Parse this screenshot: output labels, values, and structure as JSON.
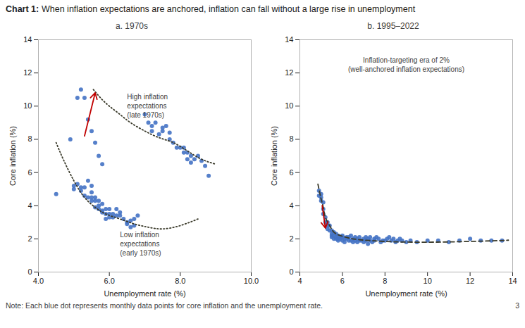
{
  "title": "Chart 1:",
  "subtitle": "When inflation expectations are anchored, inflation can fall without a large rise in unemployment",
  "caption": "Note: Each blue dot represents monthly data points for core inflation and the unemployment rate.",
  "page_number": "3",
  "chart_data": [
    {
      "type": "scatter",
      "title": "a. 1970s",
      "xlabel": "Unemployment rate (%)",
      "ylabel": "Core inflation (%)",
      "xlim": [
        4,
        10
      ],
      "ylim": [
        0,
        14
      ],
      "xticks": [
        4,
        6,
        8,
        10
      ],
      "yticks": [
        0,
        2,
        4,
        6,
        8,
        10,
        12,
        14
      ],
      "grid": false,
      "series": [
        {
          "type": "scatter",
          "marker": "circle",
          "color": "#4472C4",
          "x": [
            4.5,
            4.9,
            5.0,
            5.0,
            5.1,
            5.2,
            5.2,
            5.3,
            5.3,
            5.4,
            5.4,
            5.5,
            5.5,
            5.5,
            5.5,
            5.6,
            5.6,
            5.6,
            5.7,
            5.7,
            5.7,
            5.8,
            5.8,
            5.8,
            5.9,
            5.9,
            5.9,
            6.0,
            6.0,
            6.0,
            6.1,
            6.1,
            6.2,
            6.2,
            6.3,
            6.3,
            6.4,
            6.5,
            6.5,
            6.6,
            6.6,
            6.7,
            6.7,
            6.8,
            7.0,
            7.1,
            7.2,
            7.2,
            7.3,
            7.4,
            7.5,
            7.5,
            7.6,
            7.7,
            7.7,
            7.8,
            7.9,
            8.0,
            8.1,
            8.1,
            8.2,
            8.2,
            8.3,
            8.3,
            8.4,
            8.5,
            8.6,
            8.7,
            8.8,
            5.1,
            5.2,
            5.3,
            5.4,
            5.5,
            5.6,
            5.7,
            5.8
          ],
          "values": [
            4.7,
            8.0,
            5.2,
            5.0,
            5.3,
            5.1,
            4.9,
            5.1,
            4.6,
            4.5,
            5.5,
            4.8,
            4.5,
            4.3,
            5.2,
            4.3,
            4.5,
            3.9,
            3.8,
            4.3,
            4.0,
            3.6,
            3.7,
            4.1,
            3.5,
            3.2,
            3.8,
            3.3,
            3.8,
            3.5,
            3.5,
            3.3,
            3.4,
            3.8,
            3.4,
            3.6,
            3.2,
            3.0,
            2.9,
            2.7,
            3.1,
            2.8,
            3.2,
            3.4,
            9.5,
            9.0,
            8.5,
            8.8,
            9.0,
            8.3,
            8.7,
            8.5,
            8.8,
            8.0,
            8.4,
            7.8,
            7.5,
            7.5,
            7.5,
            7.2,
            6.8,
            7.2,
            6.6,
            7.0,
            6.8,
            7.0,
            6.7,
            6.4,
            5.8,
            10.5,
            11.0,
            10.5,
            9.2,
            8.5,
            7.8,
            7.0,
            6.5
          ]
        },
        {
          "type": "line",
          "line_style": "dotted",
          "color": "#3a3a2a",
          "x": [
            5.55,
            5.75,
            6.0,
            6.3,
            6.6,
            7.0,
            7.4,
            7.8,
            8.2,
            8.6,
            9.0
          ],
          "values": [
            11.0,
            10.5,
            10.0,
            9.5,
            9.0,
            8.5,
            8.1,
            7.8,
            7.3,
            6.8,
            6.5
          ]
        },
        {
          "type": "line",
          "line_style": "dotted",
          "color": "#3a3a2a",
          "x": [
            4.5,
            4.7,
            5.0,
            5.3,
            5.6,
            5.9,
            6.3,
            6.7,
            7.1,
            7.5,
            8.0,
            8.5
          ],
          "values": [
            7.8,
            6.8,
            5.5,
            4.5,
            3.9,
            3.5,
            3.2,
            2.9,
            2.7,
            2.6,
            2.8,
            3.2
          ]
        }
      ],
      "arrows": [
        {
          "x1": 5.3,
          "y1": 8.2,
          "x2": 5.6,
          "y2": 10.8,
          "color": "#C00000"
        }
      ],
      "annotations": [
        {
          "text": "High inflation\nexpectations\n(late 1970s)",
          "x": 6.5,
          "y": 10.8
        },
        {
          "text": "Low inflation\nexpectations\n(early 1970s)",
          "x": 6.3,
          "y": 2.5
        }
      ]
    },
    {
      "type": "scatter",
      "title": "b. 1995–2022",
      "xlabel": "Unemployment rate (%)",
      "ylabel": "Core inflation (%)",
      "xlim": [
        4,
        14
      ],
      "ylim": [
        0,
        14
      ],
      "xticks": [
        4,
        6,
        8,
        10,
        12,
        14
      ],
      "yticks": [
        0,
        2,
        4,
        6,
        8,
        10,
        12,
        14
      ],
      "grid": false,
      "series": [
        {
          "type": "scatter",
          "marker": "circle",
          "color": "#4472C4",
          "x": [
            4.9,
            4.9,
            5.0,
            5.0,
            5.0,
            5.1,
            5.1,
            5.1,
            5.2,
            5.2,
            5.3,
            5.3,
            5.3,
            5.4,
            5.4,
            5.5,
            5.5,
            5.5,
            5.5,
            5.6,
            5.6,
            5.6,
            5.7,
            5.7,
            5.7,
            5.8,
            5.8,
            5.8,
            5.9,
            5.9,
            6.0,
            6.0,
            6.0,
            6.1,
            6.1,
            6.2,
            6.2,
            6.3,
            6.3,
            6.4,
            6.4,
            6.5,
            6.5,
            6.6,
            6.6,
            6.7,
            6.7,
            6.8,
            6.8,
            6.9,
            7.0,
            7.0,
            7.1,
            7.1,
            7.2,
            7.2,
            7.3,
            7.3,
            7.4,
            7.5,
            7.5,
            7.6,
            7.7,
            7.8,
            7.9,
            8.0,
            8.1,
            8.2,
            8.3,
            8.4,
            8.5,
            8.6,
            8.7,
            8.8,
            9.0,
            9.2,
            9.5,
            10.0,
            10.5,
            11.0,
            11.5,
            12.0,
            12.5,
            13.0,
            13.5
          ],
          "values": [
            4.9,
            4.6,
            4.7,
            4.5,
            4.3,
            4.2,
            3.8,
            3.5,
            3.3,
            3.0,
            2.8,
            2.6,
            3.0,
            2.5,
            2.8,
            2.3,
            2.2,
            2.5,
            2.1,
            2.2,
            2.0,
            2.4,
            2.1,
            2.0,
            2.3,
            2.0,
            2.2,
            1.9,
            2.0,
            2.1,
            2.1,
            1.9,
            2.2,
            2.0,
            1.8,
            2.0,
            2.1,
            1.9,
            2.1,
            1.9,
            2.2,
            2.0,
            1.8,
            2.1,
            1.9,
            2.0,
            1.8,
            1.9,
            2.1,
            1.9,
            2.0,
            1.8,
            2.1,
            1.9,
            2.0,
            1.7,
            1.9,
            2.1,
            1.8,
            2.0,
            1.9,
            2.1,
            2.0,
            1.8,
            1.9,
            1.9,
            2.0,
            2.1,
            1.9,
            2.0,
            1.8,
            1.9,
            2.0,
            1.9,
            1.8,
            1.9,
            1.8,
            1.9,
            1.9,
            1.8,
            1.9,
            2.0,
            1.9,
            1.9,
            1.9
          ]
        },
        {
          "type": "line",
          "line_style": "dashed",
          "color": "#3a3a2a",
          "x": [
            4.85,
            5.0,
            5.1,
            5.2,
            5.4,
            5.6,
            5.9,
            6.3,
            6.8,
            7.5,
            8.5,
            10.0,
            11.5,
            13.0,
            13.8
          ],
          "values": [
            5.3,
            4.4,
            3.9,
            3.3,
            2.8,
            2.4,
            2.2,
            2.05,
            1.95,
            1.88,
            1.82,
            1.8,
            1.83,
            1.88,
            1.92
          ]
        }
      ],
      "arrows": [
        {
          "x1": 5.05,
          "y1": 4.0,
          "x2": 5.2,
          "y2": 2.65,
          "color": "#C00000"
        }
      ],
      "annotations": [
        {
          "text": "Inflation-targeting era of 2%\n(well-anchored inflation expectations)",
          "x": 9.0,
          "y": 13.0
        }
      ]
    }
  ]
}
